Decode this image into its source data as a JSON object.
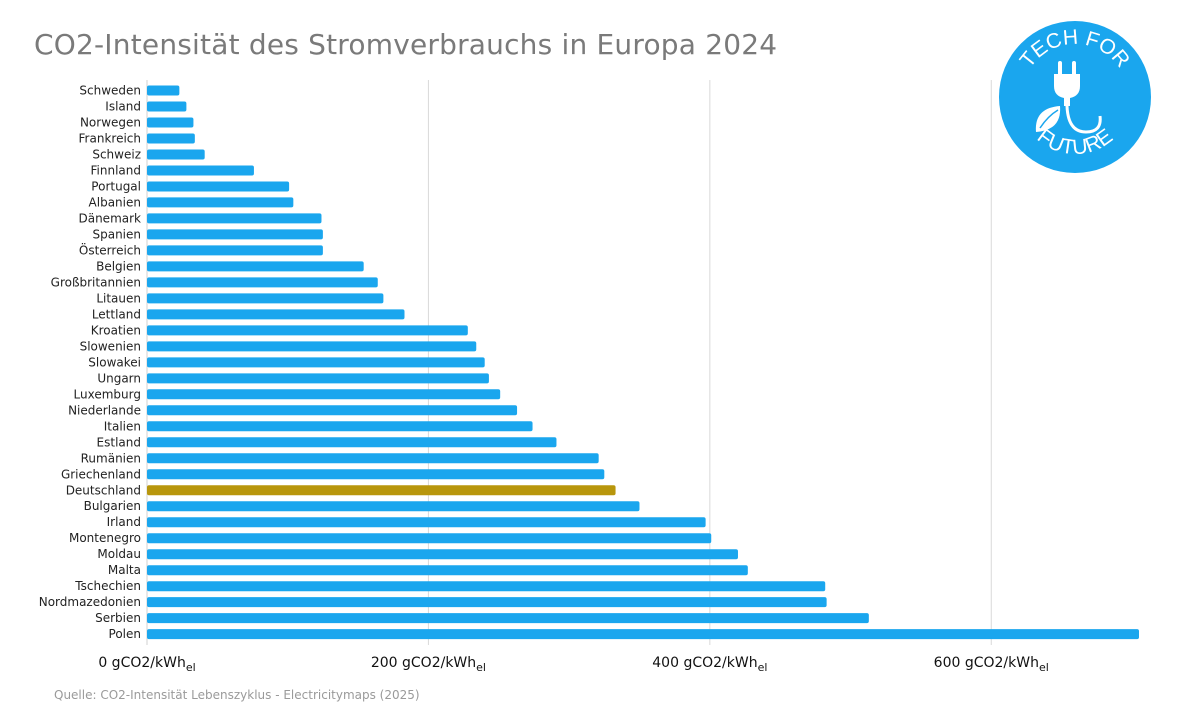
{
  "title": "CO2-Intensität des Stromverbrauchs in Europa 2024",
  "source": "Quelle: CO2-Intensität Lebenszyklus - Electricitymaps (2025)",
  "logo": {
    "top_text": "TECH FOR",
    "bottom_text": "FUTURE",
    "icon": "plug-leaf-icon",
    "color": "#1aa6ee"
  },
  "colors": {
    "bar": "#1aa6ee",
    "highlight": "#b8960c",
    "grid": "#d9d9d9"
  },
  "chart_data": {
    "type": "bar",
    "orientation": "horizontal",
    "categories": [
      "Schweden",
      "Island",
      "Norwegen",
      "Frankreich",
      "Schweiz",
      "Finnland",
      "Portugal",
      "Albanien",
      "Dänemark",
      "Spanien",
      "Österreich",
      "Belgien",
      "Großbritannien",
      "Litauen",
      "Lettland",
      "Kroatien",
      "Slowenien",
      "Slowakei",
      "Ungarn",
      "Luxemburg",
      "Niederlande",
      "Italien",
      "Estland",
      "Rumänien",
      "Griechenland",
      "Deutschland",
      "Bulgarien",
      "Irland",
      "Montenegro",
      "Moldau",
      "Malta",
      "Tschechien",
      "Nordmazedonien",
      "Serbien",
      "Polen"
    ],
    "values": [
      23,
      28,
      33,
      34,
      41,
      76,
      101,
      104,
      124,
      125,
      125,
      154,
      164,
      168,
      183,
      228,
      234,
      240,
      243,
      251,
      263,
      274,
      291,
      321,
      325,
      333,
      350,
      397,
      401,
      420,
      427,
      482,
      483,
      513,
      705
    ],
    "highlight": "Deutschland",
    "xlim": [
      0,
      705
    ],
    "xticks": [
      0,
      200,
      400,
      600
    ],
    "tick_unit": "gCO2/kWh",
    "tick_unit_sub": "el",
    "grid": true
  }
}
